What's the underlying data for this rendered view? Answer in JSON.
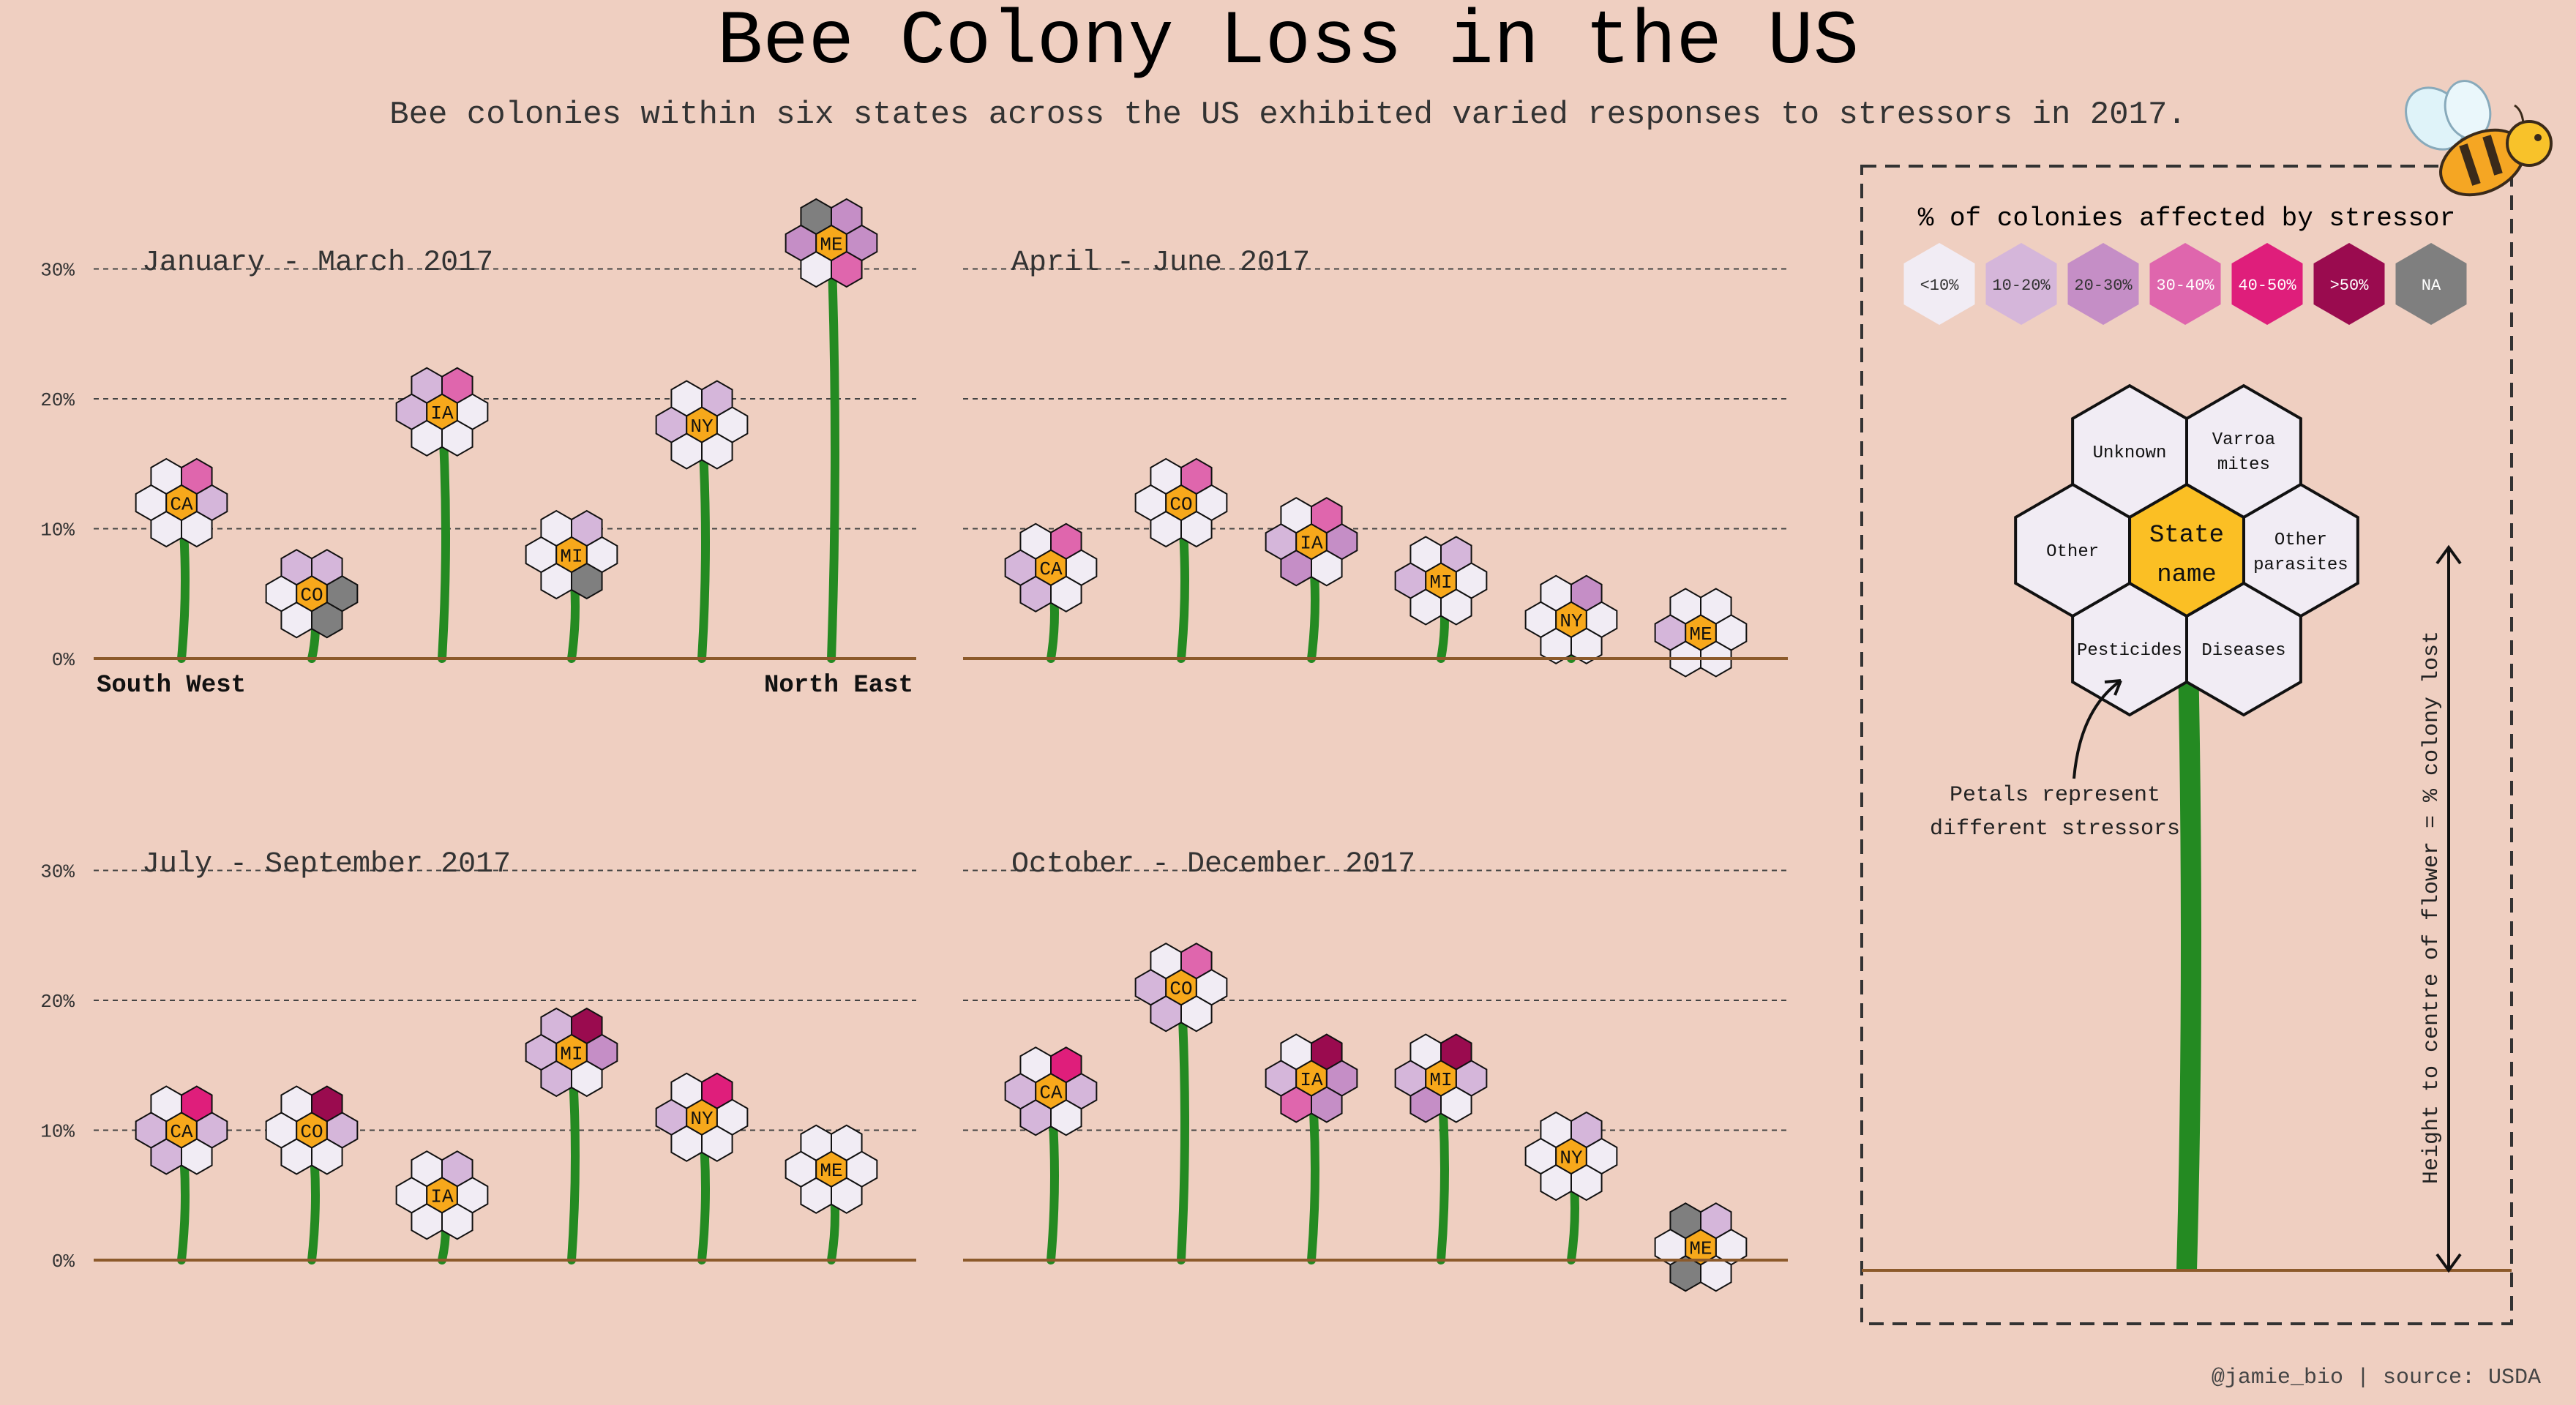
{
  "title": "Bee Colony Loss in the US",
  "subtitle": "Bee colonies within six states across the US exhibited varied responses to stressors in 2017.",
  "footer": "@jamie_bio | source: USDA",
  "colors": {
    "background": "#efcfc1",
    "stem": "#248a22",
    "ground": "#8c5a2b",
    "center": "#f7a81b",
    "legend_center": "#fbbf24"
  },
  "legend": {
    "title": "% of colonies affected by stressor",
    "bins": [
      {
        "label": "<10%",
        "color": "#f1ecf4"
      },
      {
        "label": "10-20%",
        "color": "#d5b6da"
      },
      {
        "label": "20-30%",
        "color": "#c58ec6"
      },
      {
        "label": "30-40%",
        "color": "#df66ad"
      },
      {
        "label": "40-50%",
        "color": "#df1e7b"
      },
      {
        "label": ">50%",
        "color": "#9a0b4f"
      },
      {
        "label": "NA",
        "color": "#7f7f7f"
      }
    ],
    "petal_labels": {
      "unknown": "Unknown",
      "varroa_line1": "Varroa",
      "varroa_line2": "mites",
      "other": "Other",
      "other_parasites_line1": "Other",
      "other_parasites_line2": "parasites",
      "pesticides": "Pesticides",
      "diseases": "Diseases",
      "center_line1": "State",
      "center_line2": "name"
    },
    "note_line1": "Petals represent",
    "note_line2": "different stressors",
    "axis_note": "Height to centre of flower = % colony lost"
  },
  "axis": {
    "ticks": [
      "0%",
      "10%",
      "20%",
      "30%"
    ],
    "region_left": "South West",
    "region_right": "North East"
  },
  "chart_data": {
    "type": "scatter",
    "encoding": "flower height = % colony lost; petal colours = % of colonies affected by stressor (bin index into legend.bins)",
    "petal_order": [
      "Unknown",
      "Varroa mites",
      "Other parasites",
      "Diseases",
      "Pesticides",
      "Other"
    ],
    "states": [
      "CA",
      "CO",
      "IA",
      "MI",
      "NY",
      "ME"
    ],
    "ylim": [
      0,
      30
    ],
    "ylabel": "% colony lost",
    "panels": [
      {
        "title": "January - March 2017",
        "flowers": [
          {
            "state": "CA",
            "loss": 12,
            "petals": [
              0,
              3,
              1,
              0,
              0,
              0
            ]
          },
          {
            "state": "CO",
            "loss": 5,
            "petals": [
              1,
              1,
              6,
              6,
              0,
              0
            ]
          },
          {
            "state": "IA",
            "loss": 19,
            "petals": [
              1,
              3,
              0,
              0,
              0,
              1
            ]
          },
          {
            "state": "MI",
            "loss": 8,
            "petals": [
              0,
              1,
              0,
              6,
              0,
              0
            ]
          },
          {
            "state": "NY",
            "loss": 18,
            "petals": [
              0,
              1,
              0,
              0,
              0,
              1
            ]
          },
          {
            "state": "ME",
            "loss": 32,
            "petals": [
              6,
              2,
              2,
              3,
              0,
              2
            ]
          }
        ]
      },
      {
        "title": "April - June 2017",
        "flowers": [
          {
            "state": "CA",
            "loss": 7,
            "petals": [
              0,
              3,
              0,
              0,
              1,
              1
            ]
          },
          {
            "state": "CO",
            "loss": 12,
            "petals": [
              0,
              3,
              0,
              0,
              0,
              0
            ]
          },
          {
            "state": "IA",
            "loss": 9,
            "petals": [
              0,
              3,
              2,
              0,
              2,
              1
            ]
          },
          {
            "state": "MI",
            "loss": 6,
            "petals": [
              0,
              1,
              0,
              0,
              0,
              1
            ]
          },
          {
            "state": "NY",
            "loss": 3,
            "petals": [
              0,
              2,
              0,
              0,
              0,
              0
            ]
          },
          {
            "state": "ME",
            "loss": 2,
            "petals": [
              0,
              0,
              0,
              0,
              0,
              1
            ]
          }
        ]
      },
      {
        "title": "July - September 2017",
        "flowers": [
          {
            "state": "CA",
            "loss": 10,
            "petals": [
              0,
              4,
              1,
              0,
              1,
              1
            ]
          },
          {
            "state": "CO",
            "loss": 10,
            "petals": [
              0,
              5,
              1,
              0,
              0,
              0
            ]
          },
          {
            "state": "IA",
            "loss": 5,
            "petals": [
              0,
              1,
              0,
              0,
              0,
              0
            ]
          },
          {
            "state": "MI",
            "loss": 16,
            "petals": [
              1,
              5,
              2,
              0,
              1,
              1
            ]
          },
          {
            "state": "NY",
            "loss": 11,
            "petals": [
              0,
              4,
              0,
              0,
              0,
              1
            ]
          },
          {
            "state": "ME",
            "loss": 7,
            "petals": [
              0,
              0,
              0,
              0,
              0,
              0
            ]
          }
        ]
      },
      {
        "title": "October - December 2017",
        "flowers": [
          {
            "state": "CA",
            "loss": 13,
            "petals": [
              0,
              4,
              1,
              0,
              1,
              1
            ]
          },
          {
            "state": "CO",
            "loss": 21,
            "petals": [
              0,
              3,
              0,
              0,
              1,
              1
            ]
          },
          {
            "state": "IA",
            "loss": 14,
            "petals": [
              0,
              5,
              2,
              2,
              3,
              1
            ]
          },
          {
            "state": "MI",
            "loss": 14,
            "petals": [
              0,
              5,
              1,
              0,
              2,
              1
            ]
          },
          {
            "state": "NY",
            "loss": 8,
            "petals": [
              0,
              1,
              0,
              0,
              0,
              0
            ]
          },
          {
            "state": "ME",
            "loss": 1,
            "petals": [
              6,
              1,
              0,
              0,
              6,
              0
            ]
          }
        ]
      }
    ]
  }
}
